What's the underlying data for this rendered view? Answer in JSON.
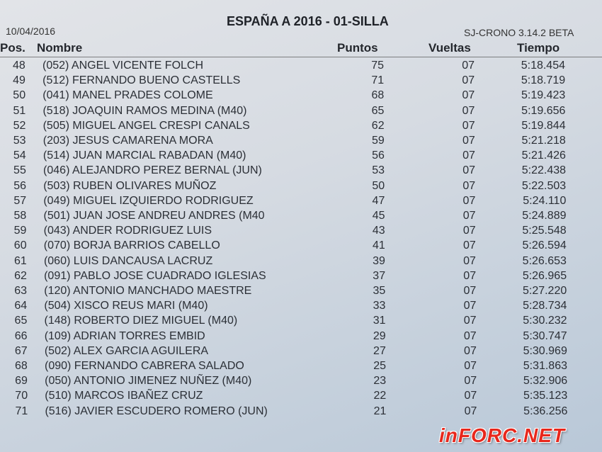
{
  "document": {
    "title": "ESPAÑA A 2016 - 01-SILLA",
    "date": "10/04/2016",
    "software": "SJ-CRONO 3.14.2 BETA"
  },
  "table": {
    "headers": {
      "pos": "Pos.",
      "name": "Nombre",
      "points": "Puntos",
      "laps": "Vueltas",
      "time": "Tiempo"
    },
    "rows": [
      {
        "pos": "48",
        "name": "(052) ANGEL VICENTE FOLCH",
        "points": "75",
        "laps": "07",
        "time": "5:18.454"
      },
      {
        "pos": "49",
        "name": "(512) FERNANDO BUENO CASTELLS",
        "points": "71",
        "laps": "07",
        "time": "5:18.719"
      },
      {
        "pos": "50",
        "name": "(041) MANEL PRADES COLOME",
        "points": "68",
        "laps": "07",
        "time": "5:19.423"
      },
      {
        "pos": "51",
        "name": "(518) JOAQUIN RAMOS MEDINA (M40)",
        "points": "65",
        "laps": "07",
        "time": "5:19.656"
      },
      {
        "pos": "52",
        "name": "(505) MIGUEL ANGEL CRESPI CANALS",
        "points": "62",
        "laps": "07",
        "time": "5:19.844"
      },
      {
        "pos": "53",
        "name": "(203) JESUS CAMARENA MORA",
        "points": "59",
        "laps": "07",
        "time": "5:21.218"
      },
      {
        "pos": "54",
        "name": "(514) JUAN MARCIAL RABADAN (M40)",
        "points": "56",
        "laps": "07",
        "time": "5:21.426"
      },
      {
        "pos": "55",
        "name": "(046) ALEJANDRO PEREZ BERNAL (JUN)",
        "points": "53",
        "laps": "07",
        "time": "5:22.438"
      },
      {
        "pos": "56",
        "name": "(503) RUBEN OLIVARES MUÑOZ",
        "points": "50",
        "laps": "07",
        "time": "5:22.503"
      },
      {
        "pos": "57",
        "name": "(049) MIGUEL IZQUIERDO RODRIGUEZ",
        "points": "47",
        "laps": "07",
        "time": "5:24.110"
      },
      {
        "pos": "58",
        "name": "(501) JUAN JOSE ANDREU ANDRES (M40",
        "points": "45",
        "laps": "07",
        "time": "5:24.889"
      },
      {
        "pos": "59",
        "name": "(043) ANDER RODRIGUEZ LUIS",
        "points": "43",
        "laps": "07",
        "time": "5:25.548"
      },
      {
        "pos": "60",
        "name": "(070) BORJA BARRIOS CABELLO",
        "points": "41",
        "laps": "07",
        "time": "5:26.594"
      },
      {
        "pos": "61",
        "name": "(060) LUIS DANCAUSA LACRUZ",
        "points": "39",
        "laps": "07",
        "time": "5:26.653"
      },
      {
        "pos": "62",
        "name": "(091) PABLO JOSE CUADRADO IGLESIAS",
        "points": "37",
        "laps": "07",
        "time": "5:26.965"
      },
      {
        "pos": "63",
        "name": "(120) ANTONIO MANCHADO MAESTRE",
        "points": "35",
        "laps": "07",
        "time": "5:27.220"
      },
      {
        "pos": "64",
        "name": "(504) XISCO REUS MARI (M40)",
        "points": "33",
        "laps": "07",
        "time": "5:28.734"
      },
      {
        "pos": "65",
        "name": "(148) ROBERTO DIEZ MIGUEL (M40)",
        "points": "31",
        "laps": "07",
        "time": "5:30.232"
      },
      {
        "pos": "66",
        "name": "(109) ADRIAN TORRES EMBID",
        "points": "29",
        "laps": "07",
        "time": "5:30.747"
      },
      {
        "pos": "67",
        "name": "(502) ALEX GARCIA AGUILERA",
        "points": "27",
        "laps": "07",
        "time": "5:30.969"
      },
      {
        "pos": "68",
        "name": "(090) FERNANDO CABRERA SALADO",
        "points": "25",
        "laps": "07",
        "time": "5:31.863"
      },
      {
        "pos": "69",
        "name": "(050) ANTONIO JIMENEZ NUÑEZ (M40)",
        "points": "23",
        "laps": "07",
        "time": "5:32.906"
      },
      {
        "pos": "70",
        "name": "(510) MARCOS IBAÑEZ CRUZ",
        "points": "22",
        "laps": "07",
        "time": "5:35.123"
      },
      {
        "pos": "71",
        "name": "(516) JAVIER ESCUDERO ROMERO (JUN)",
        "points": "21",
        "laps": "07",
        "time": "5:36.256"
      }
    ]
  },
  "watermark": {
    "text": "INFORC.NET",
    "color": "#e8271c"
  }
}
